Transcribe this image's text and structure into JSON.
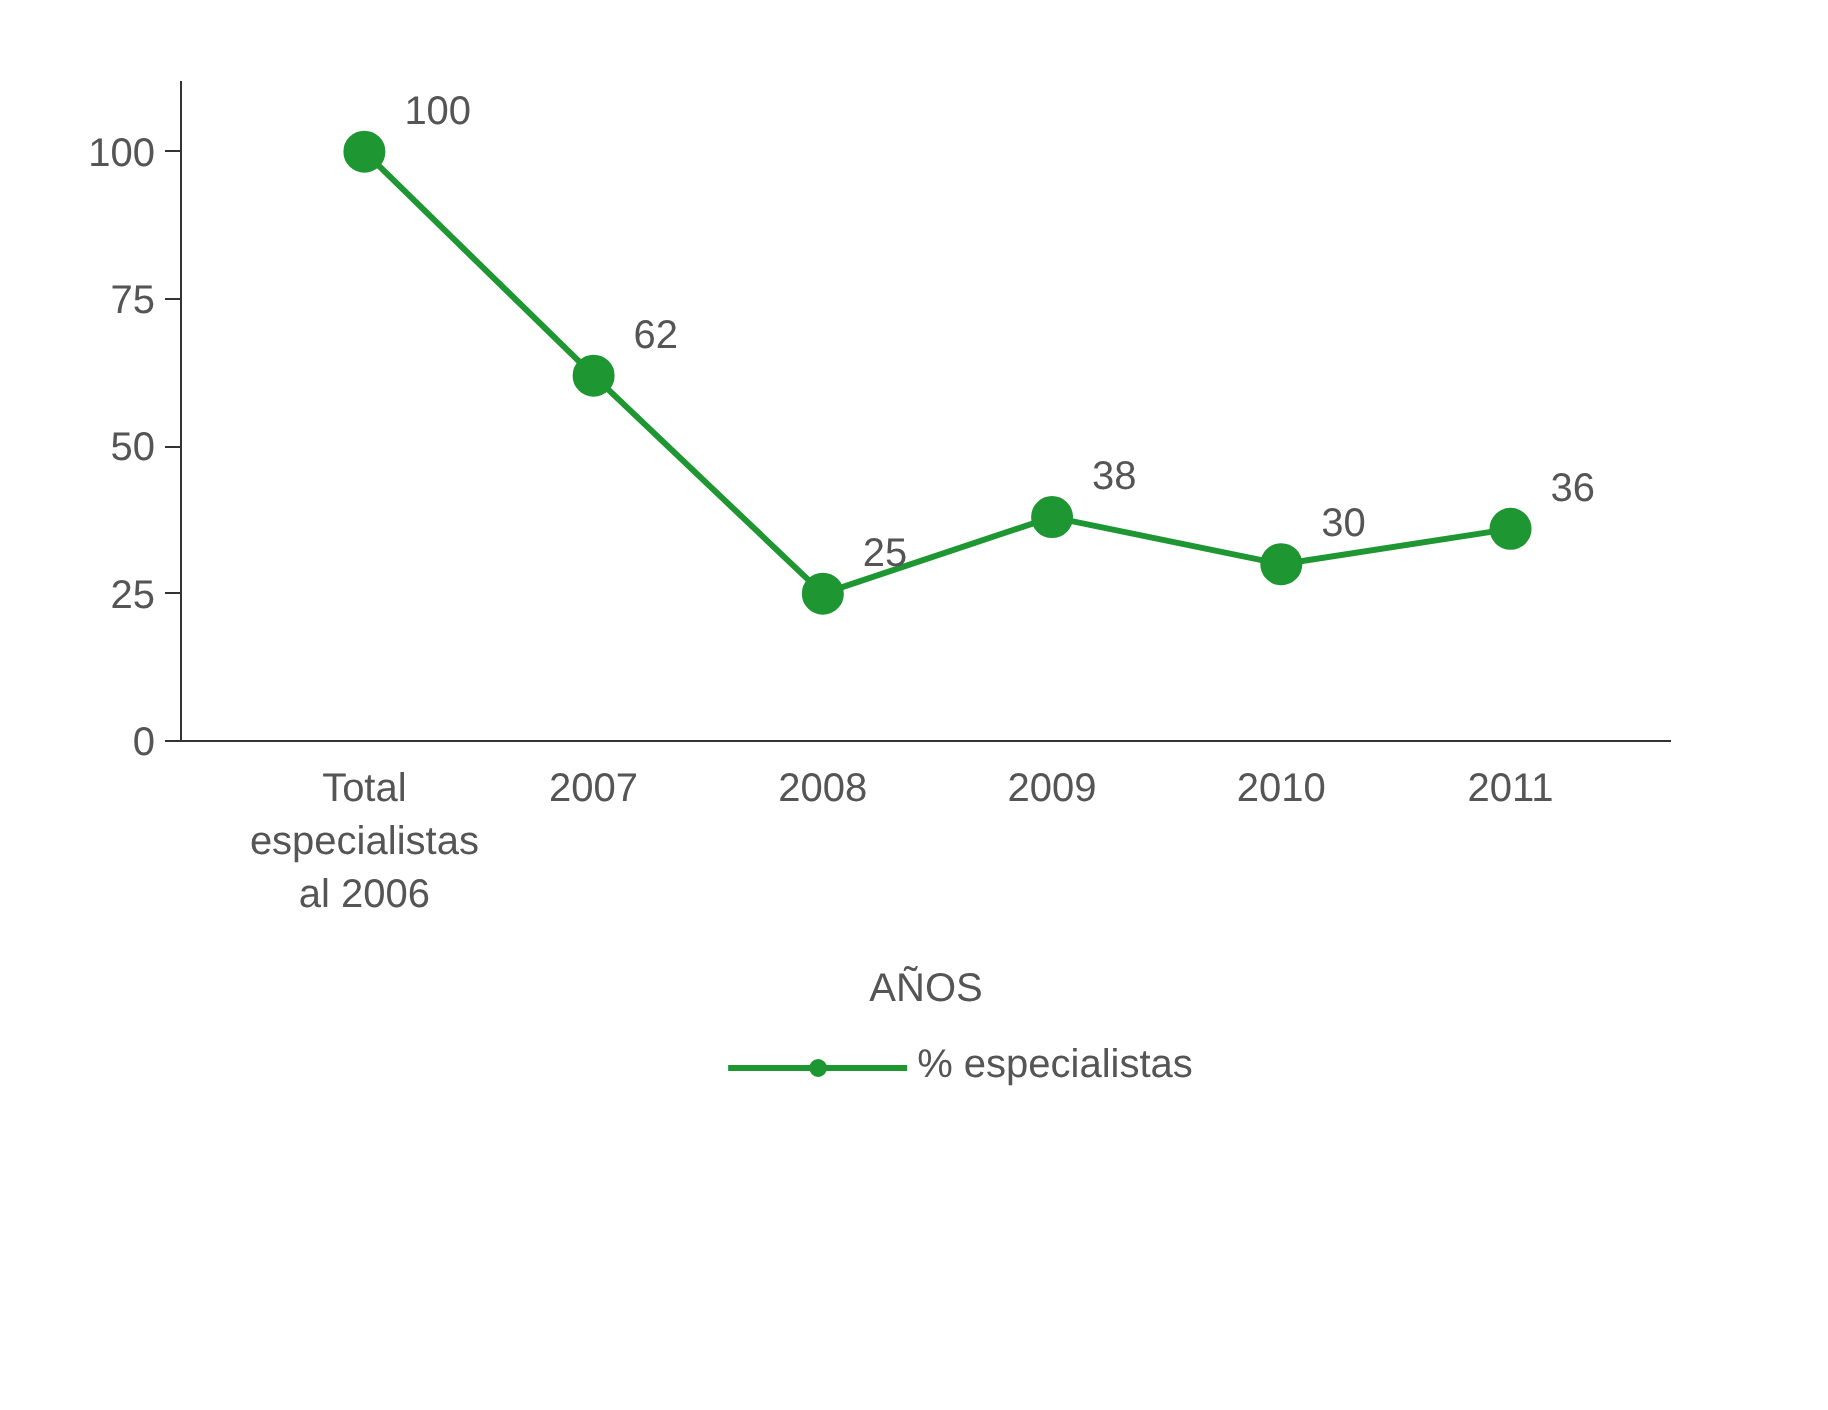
{
  "chart_data": {
    "type": "line",
    "xlabel": "AÑOS",
    "categories": [
      "Total especialistas al 2006",
      "2007",
      "2008",
      "2009",
      "2010",
      "2011"
    ],
    "series": [
      {
        "name": "% especialistas",
        "color": "#1e9632",
        "values": [
          100,
          62,
          25,
          38,
          30,
          36
        ]
      }
    ],
    "ylim": [
      0,
      112
    ],
    "yticks": [
      0,
      25,
      50,
      75,
      100
    ],
    "grid": false,
    "legend": "bottom",
    "marker": "circle",
    "line_style": "solid",
    "data_labels": true
  }
}
